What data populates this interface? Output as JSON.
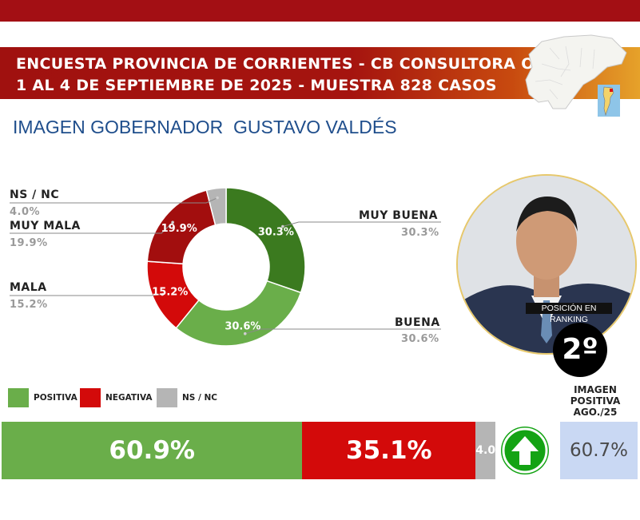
{
  "header": {
    "line1": "ENCUESTA PROVINCIA DE CORRIENTES - CB CONSULTORA OP",
    "line2": "1 AL 4 DE SEPTIEMBRE DE 2025 - MUESTRA 828 CASOS"
  },
  "chart_title": "IMAGEN GOBERNADOR  GUSTAVO VALDÉS",
  "colors": {
    "muy_buena": "#3b7a1f",
    "buena": "#6aae4a",
    "mala": "#d30a0a",
    "muy_mala": "#a20e0e",
    "ns_nc": "#b5b5b5",
    "header_red": "#a30f14",
    "title_blue": "#1f4e8c"
  },
  "chart_data": [
    {
      "type": "pie",
      "title": "IMAGEN GOBERNADOR  GUSTAVO VALDÉS",
      "categories": [
        "MUY BUENA",
        "BUENA",
        "MALA",
        "MUY MALA",
        "NS / NC"
      ],
      "values": [
        30.3,
        30.6,
        15.2,
        19.9,
        4.0
      ],
      "labels": [
        "30.3%",
        "30.6%",
        "15.2%",
        "19.9%",
        "4.0%"
      ]
    },
    {
      "type": "bar",
      "categories": [
        "POSITIVA",
        "NEGATIVA",
        "NS / NC"
      ],
      "values": [
        60.9,
        35.1,
        4.0
      ],
      "labels": [
        "60.9%",
        "35.1%",
        "4.0%"
      ]
    }
  ],
  "ranking": {
    "label": "POSICIÓN EN RANKING",
    "value": "2º"
  },
  "previous": {
    "title": [
      "IMAGEN",
      "POSITIVA",
      "AGO./25"
    ],
    "value": "60.7%",
    "trend_icon": "arrow-up-icon"
  }
}
